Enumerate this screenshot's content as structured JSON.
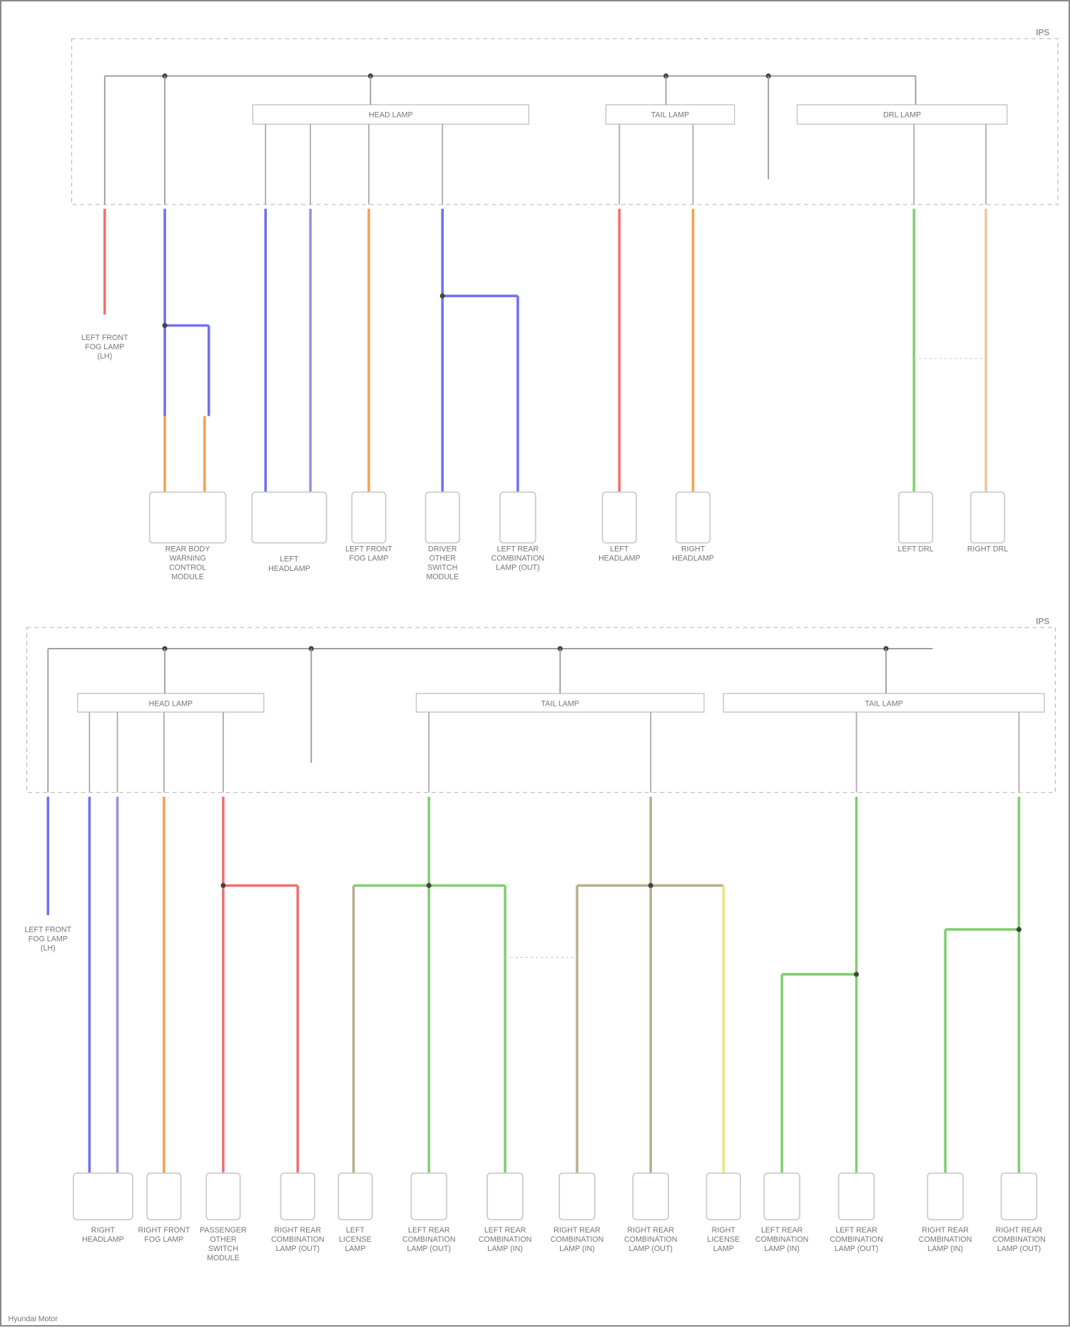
{
  "page_ids": {
    "top": "IPS",
    "bottom": "IPS"
  },
  "footer": "Hyundai Motor",
  "colors": {
    "red": "#f07070",
    "blue": "#7070f0",
    "purple": "#9a90e0",
    "orange": "#f5a050",
    "green": "#80d070",
    "tan": "#e8c8a0",
    "olive": "#b8b090",
    "yellow": "#e8e880",
    "gray": "#cccccc"
  },
  "top": {
    "fuses": [
      "HEAD LAMP",
      "TAIL LAMP",
      "DRL LAMP"
    ],
    "components": [
      {
        "label": "LEFT FRONT FOG LAMP (LH)",
        "wire": "red"
      },
      {
        "label": "REAR BODY WARNING CONTROL MODULE",
        "wire": "blue"
      },
      {
        "label": "LEFT HEADLAMP",
        "wire": "blue"
      },
      {
        "label": "LEFT FRONT FOG LAMP",
        "wire": "orange"
      },
      {
        "label": "DRIVER OTHER SWITCH MODULE",
        "wire": "blue"
      },
      {
        "label": "LEFT REAR COMBINATION LAMP (OUT)",
        "wire": "blue"
      },
      {
        "label": "LEFT HEADLAMP",
        "wire": "red"
      },
      {
        "label": "RIGHT HEADLAMP",
        "wire": "orange"
      },
      {
        "label": "LEFT DRL",
        "wire": "green"
      },
      {
        "label": "RIGHT DRL",
        "wire": "tan"
      }
    ]
  },
  "bottom": {
    "fuses": [
      "HEAD LAMP",
      "TAIL LAMP",
      "TAIL LAMP"
    ],
    "components": [
      {
        "label": "LEFT FRONT FOG LAMP (LH)",
        "wire": "blue"
      },
      {
        "label": "RIGHT HEADLAMP",
        "wire": "blue"
      },
      {
        "label": "RIGHT FRONT FOG LAMP",
        "wire": "orange"
      },
      {
        "label": "PASSENGER OTHER SWITCH MODULE",
        "wire": "red"
      },
      {
        "label": "RIGHT REAR COMBINATION LAMP (OUT)",
        "wire": "red"
      },
      {
        "label": "LEFT LICENSE LAMP",
        "wire": "olive"
      },
      {
        "label": "LEFT REAR COMBINATION LAMP (OUT)",
        "wire": "green"
      },
      {
        "label": "LEFT REAR COMBINATION LAMP (IN)",
        "wire": "green"
      },
      {
        "label": "RIGHT REAR COMBINATION LAMP (IN)",
        "wire": "olive"
      },
      {
        "label": "RIGHT REAR COMBINATION LAMP (OUT)",
        "wire": "olive"
      },
      {
        "label": "RIGHT LICENSE LAMP",
        "wire": "yellow"
      },
      {
        "label": "LEFT REAR COMBINATION LAMP (IN)",
        "wire": "green"
      },
      {
        "label": "LEFT REAR COMBINATION LAMP (OUT)",
        "wire": "green"
      },
      {
        "label": "RIGHT REAR COMBINATION LAMP (IN)",
        "wire": "green"
      },
      {
        "label": "RIGHT REAR COMBINATION LAMP (OUT)",
        "wire": "green"
      }
    ]
  }
}
